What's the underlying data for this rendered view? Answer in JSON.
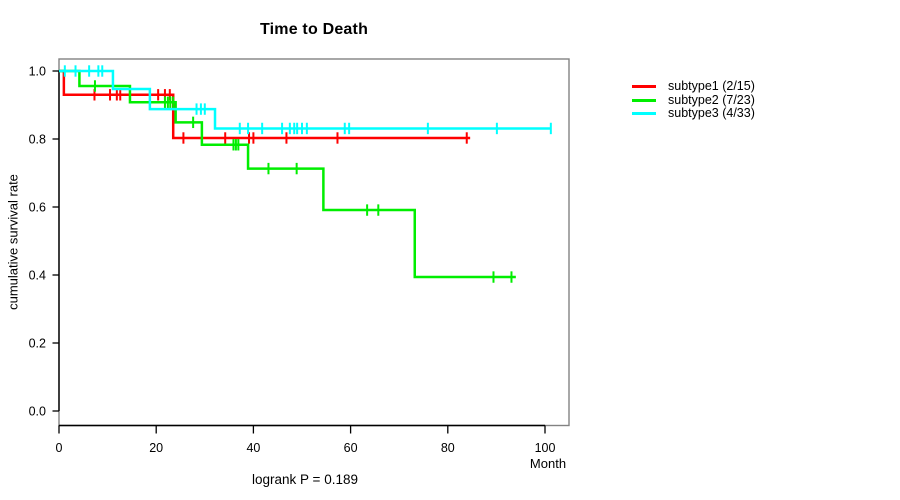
{
  "figure": {
    "footnote": "logrank P = 0.189"
  },
  "chart_data": {
    "type": "line",
    "variant": "kaplan_meier_step_survival",
    "title": "Time to Death",
    "xlabel": "Month",
    "ylabel": "cumulative survival rate",
    "xlim": [
      0,
      105
    ],
    "ylim": [
      0.0,
      1.0
    ],
    "x_ticks": [
      0,
      20,
      40,
      60,
      80,
      100
    ],
    "y_ticks": [
      0.0,
      0.2,
      0.4,
      0.6,
      0.8,
      1.0
    ],
    "y_tick_labels": [
      "0.0",
      "0.2",
      "0.4",
      "0.6",
      "0.8",
      "1.0"
    ],
    "grid": false,
    "legend_position": "outside-top-right",
    "frame_color": "#828282",
    "axis_color": "#000000",
    "series": [
      {
        "name": "subtype1 (2/15)",
        "color": "#ff0000",
        "step_points": [
          [
            0,
            1.0
          ],
          [
            1.0,
            0.93
          ],
          [
            23.5,
            0.803
          ],
          [
            84.6,
            0.803
          ]
        ],
        "censor_times": [
          7.3,
          10.5,
          11.9,
          12.6,
          20.4,
          21.8,
          22.8,
          25.6,
          34.2,
          39.1,
          40.0,
          46.8,
          57.3,
          83.9
        ]
      },
      {
        "name": "subtype2 (7/23)",
        "color": "#00ee00",
        "step_points": [
          [
            0,
            1.0
          ],
          [
            4.2,
            0.956
          ],
          [
            14.6,
            0.908
          ],
          [
            24.0,
            0.849
          ],
          [
            29.4,
            0.783
          ],
          [
            38.9,
            0.713
          ],
          [
            54.4,
            0.591
          ],
          [
            73.2,
            0.394
          ],
          [
            94.0,
            0.394
          ]
        ],
        "censor_times": [
          7.4,
          21.8,
          22.4,
          22.9,
          23.5,
          27.6,
          35.9,
          36.4,
          36.9,
          43.1,
          48.9,
          63.4,
          65.7,
          89.4,
          93.1
        ]
      },
      {
        "name": "subtype3 (4/33)",
        "color": "#00ffff",
        "step_points": [
          [
            0,
            1.0
          ],
          [
            11.1,
            0.947
          ],
          [
            18.7,
            0.888
          ],
          [
            32.1,
            0.831
          ],
          [
            101.3,
            0.831
          ]
        ],
        "censor_times": [
          1.2,
          3.4,
          6.2,
          8.1,
          8.9,
          28.3,
          29.2,
          30.0,
          37.2,
          38.9,
          41.8,
          45.9,
          47.5,
          48.4,
          49.0,
          50.0,
          51.0,
          58.8,
          59.7,
          75.9,
          90.1,
          101.2
        ]
      }
    ]
  }
}
